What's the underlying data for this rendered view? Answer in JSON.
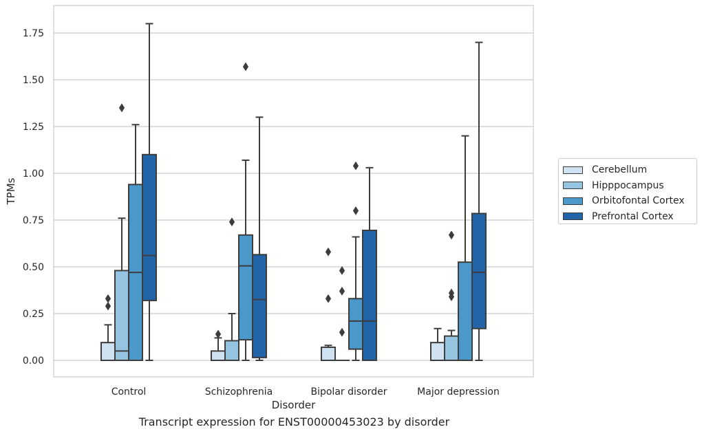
{
  "chart_data": {
    "type": "box",
    "caption": "Transcript expression for ENST00000453023 by disorder",
    "xlabel": "Disorder",
    "ylabel": "TPMs",
    "ylim": [
      -0.09,
      1.89
    ],
    "yticks": [
      "0.00",
      "0.25",
      "0.50",
      "0.75",
      "1.00",
      "1.25",
      "1.50",
      "1.75"
    ],
    "categories": [
      "Control",
      "Schizophrenia",
      "Bipolar disorder",
      "Major depression"
    ],
    "legend_position": "right",
    "grid": true,
    "series": [
      {
        "name": "Cerebellum",
        "color": "#d0e1f2",
        "boxes": [
          {
            "min": 0,
            "q1": 0,
            "median": 0,
            "q3": 0.095,
            "max": 0.19,
            "outliers": [
              0.29,
              0.33
            ]
          },
          {
            "min": 0,
            "q1": 0,
            "median": 0,
            "q3": 0.05,
            "max": 0.12,
            "outliers": [
              0.14
            ]
          },
          {
            "min": 0,
            "q1": 0,
            "median": 0,
            "q3": 0.07,
            "max": 0.08,
            "outliers": [
              0.33,
              0.58
            ]
          },
          {
            "min": 0,
            "q1": 0,
            "median": 0,
            "q3": 0.095,
            "max": 0.17,
            "outliers": []
          }
        ]
      },
      {
        "name": "Hipppocampus",
        "color": "#94c4df",
        "boxes": [
          {
            "min": 0,
            "q1": 0,
            "median": 0.05,
            "q3": 0.48,
            "max": 0.76,
            "outliers": [
              1.35
            ]
          },
          {
            "min": 0,
            "q1": 0,
            "median": 0,
            "q3": 0.105,
            "max": 0.25,
            "outliers": [
              0.74
            ]
          },
          {
            "min": 0,
            "q1": 0,
            "median": 0,
            "q3": 0,
            "max": 0,
            "outliers": [
              0.15,
              0.37,
              0.48
            ]
          },
          {
            "min": 0,
            "q1": 0,
            "median": 0,
            "q3": 0.13,
            "max": 0.16,
            "outliers": [
              0.34,
              0.36,
              0.67
            ]
          }
        ]
      },
      {
        "name": "Orbitofontal Cortex",
        "color": "#4b98ca",
        "boxes": [
          {
            "min": 0,
            "q1": 0,
            "median": 0.47,
            "q3": 0.94,
            "max": 1.26,
            "outliers": []
          },
          {
            "min": 0,
            "q1": 0.11,
            "median": 0.505,
            "q3": 0.67,
            "max": 1.07,
            "outliers": [
              1.57
            ]
          },
          {
            "min": 0,
            "q1": 0.06,
            "median": 0.21,
            "q3": 0.33,
            "max": 0.66,
            "outliers": [
              0.8,
              1.04
            ]
          },
          {
            "min": 0,
            "q1": 0,
            "median": 0,
            "q3": 0.525,
            "max": 1.2,
            "outliers": []
          }
        ]
      },
      {
        "name": "Prefrontal Cortex",
        "color": "#2264a8",
        "boxes": [
          {
            "min": 0,
            "q1": 0.32,
            "median": 0.56,
            "q3": 1.1,
            "max": 1.8,
            "outliers": []
          },
          {
            "min": 0,
            "q1": 0.015,
            "median": 0.325,
            "q3": 0.565,
            "max": 1.3,
            "outliers": []
          },
          {
            "min": 0,
            "q1": 0,
            "median": 0.21,
            "q3": 0.695,
            "max": 1.03,
            "outliers": []
          },
          {
            "min": 0,
            "q1": 0.17,
            "median": 0.47,
            "q3": 0.785,
            "max": 1.7,
            "outliers": []
          }
        ]
      }
    ]
  }
}
